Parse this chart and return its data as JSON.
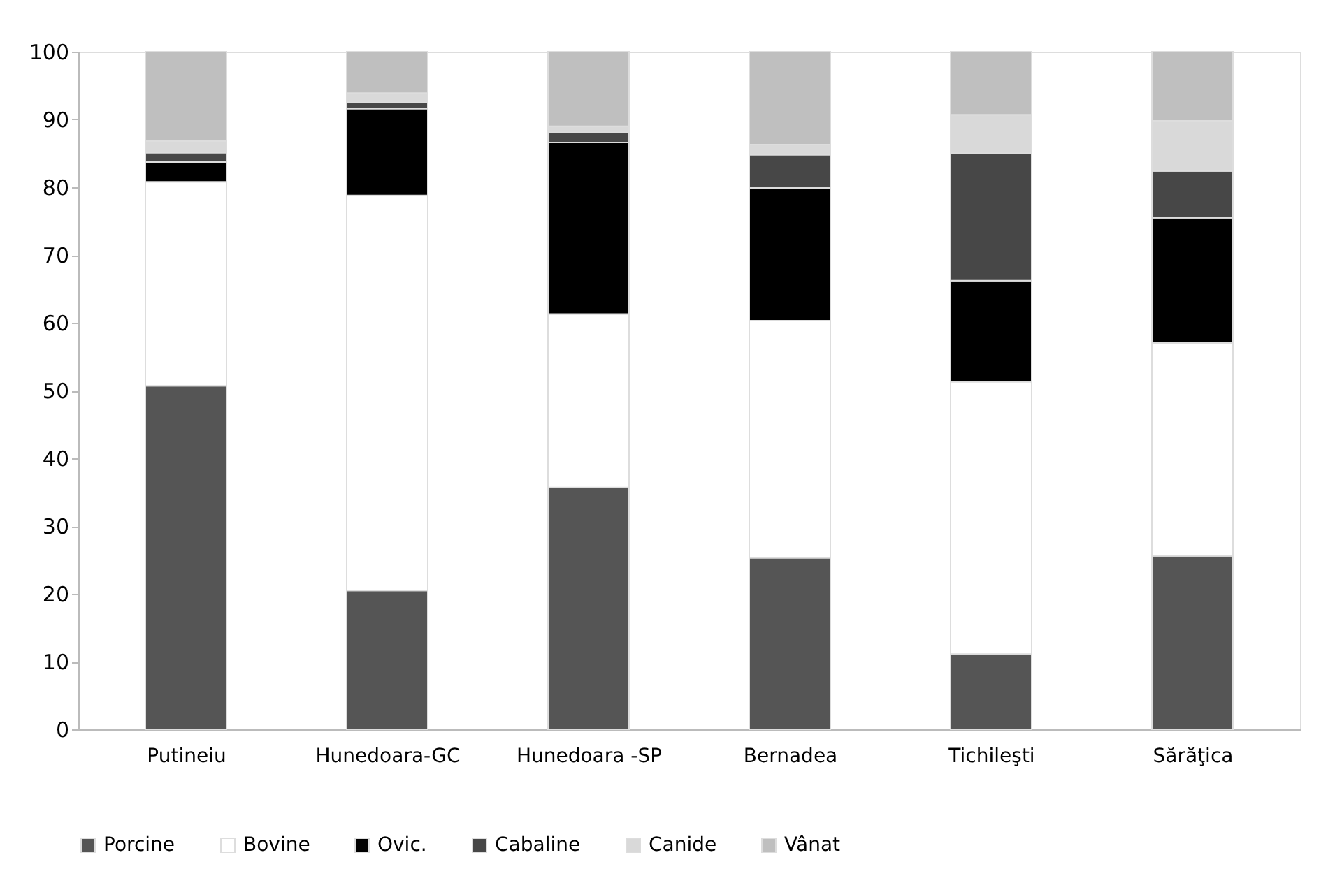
{
  "chart_data": {
    "type": "bar",
    "stacked": true,
    "categories": [
      "Putineiu",
      "Hunedoara-GC",
      "Hunedoara -SP",
      "Bernadea",
      "Tichileşti",
      "Sărăţica"
    ],
    "series": [
      {
        "name": "Porcine",
        "color": "#555555",
        "values": [
          50.7,
          20.5,
          35.7,
          25.3,
          11.1,
          25.6
        ]
      },
      {
        "name": "Bovine",
        "color": "#ffffff",
        "values": [
          30.1,
          58.3,
          25.6,
          35.0,
          40.2,
          31.4
        ]
      },
      {
        "name": "Ovic.",
        "color": "#000000",
        "values": [
          2.9,
          12.8,
          25.3,
          19.6,
          14.9,
          18.5
        ]
      },
      {
        "name": "Cabaline",
        "color": "#474747",
        "values": [
          1.4,
          0.9,
          1.5,
          4.9,
          18.8,
          6.9
        ]
      },
      {
        "name": "Canide",
        "color": "#d9d9d9",
        "values": [
          1.7,
          1.4,
          0.9,
          1.5,
          5.7,
          7.4
        ]
      },
      {
        "name": "Vânat",
        "color": "#bfbfbf",
        "values": [
          13.2,
          6.1,
          11.0,
          13.7,
          9.3,
          10.2
        ]
      }
    ],
    "ylim": [
      0,
      100
    ],
    "yticks": [
      0,
      10,
      20,
      30,
      40,
      50,
      60,
      70,
      80,
      90,
      100
    ],
    "grid": false,
    "legend": "bottom"
  }
}
